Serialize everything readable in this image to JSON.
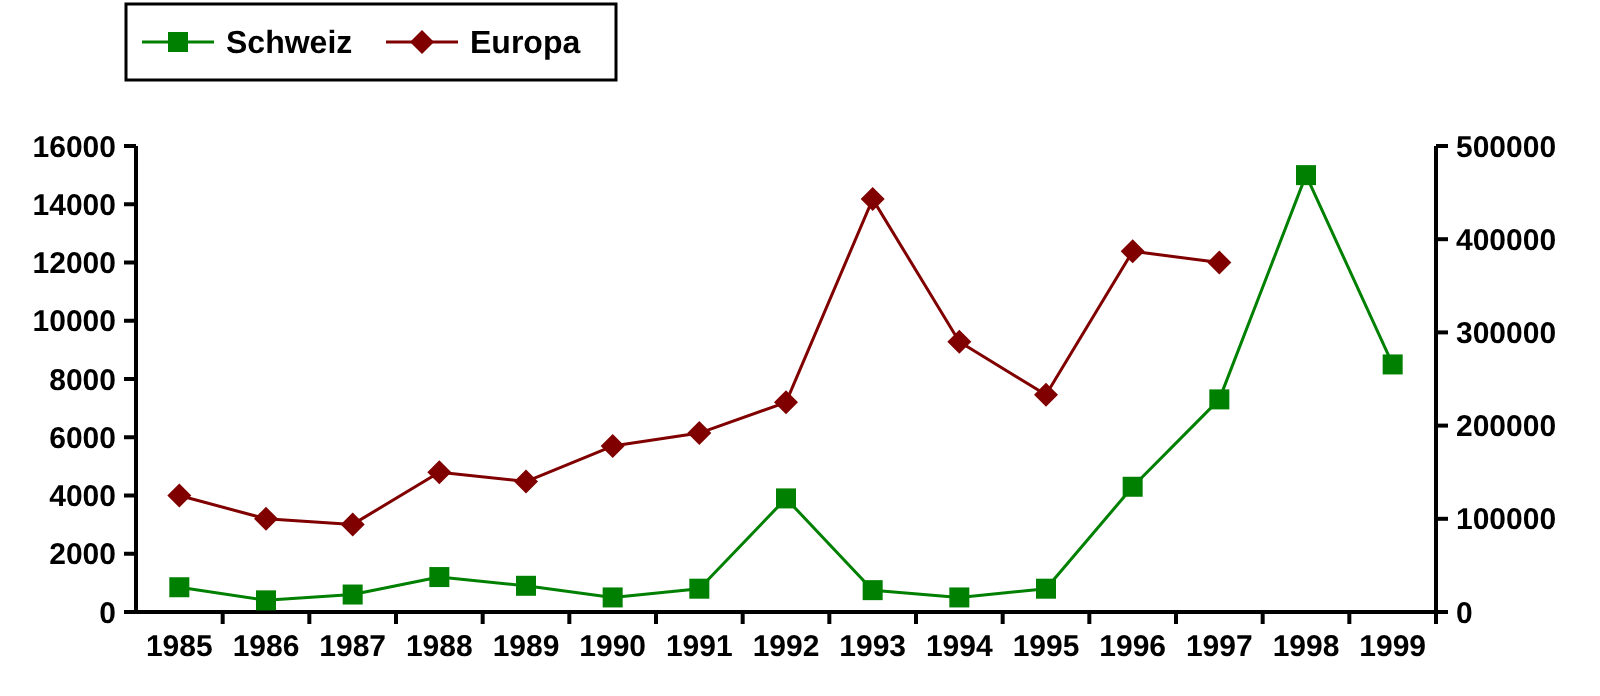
{
  "chart_data": {
    "type": "line",
    "categories": [
      "1985",
      "1986",
      "1987",
      "1988",
      "1989",
      "1990",
      "1991",
      "1992",
      "1993",
      "1994",
      "1995",
      "1996",
      "1997",
      "1998",
      "1999"
    ],
    "series": [
      {
        "name": "Schweiz",
        "color": "#008000",
        "marker": "square",
        "values": [
          850,
          400,
          600,
          1200,
          900,
          500,
          800,
          3900,
          750,
          500,
          800,
          4300,
          7300,
          15000,
          8500
        ]
      },
      {
        "name": "Europa",
        "color": "#800000",
        "marker": "diamond",
        "axis": "y2",
        "values": [
          125000,
          100000,
          94000,
          150000,
          140000,
          178000,
          192000,
          225000,
          443000,
          290000,
          233000,
          387000,
          375000,
          null,
          null
        ]
      }
    ],
    "ylim": [
      0,
      16000
    ],
    "yticks": [
      0,
      2000,
      4000,
      6000,
      8000,
      10000,
      12000,
      14000,
      16000
    ],
    "y2lim": [
      0,
      500000
    ],
    "y2ticks": [
      0,
      100000,
      200000,
      300000,
      400000,
      500000
    ],
    "grid": false,
    "legend": "top left"
  }
}
